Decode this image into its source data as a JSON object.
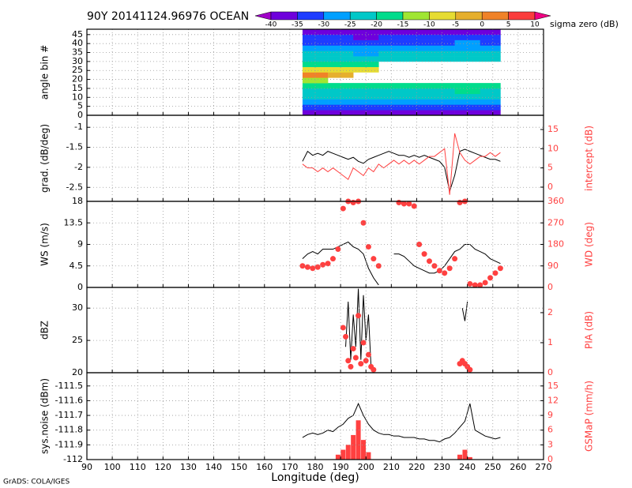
{
  "footer": "GrADS: COLA/IGES",
  "chart_data": [
    {
      "type": "colorbar",
      "title": "90Y 20141124.96976 OCEAN",
      "label": "sigma zero (dB)",
      "bounds": [
        -40,
        -35,
        -30,
        -25,
        -20,
        -15,
        -10,
        -5,
        0,
        5,
        10
      ],
      "colors": [
        "#a000c8",
        "#6e00dc",
        "#1e3cff",
        "#00a0ff",
        "#00c8c8",
        "#00dc8c",
        "#a0e632",
        "#e6dc32",
        "#e6af2d",
        "#f08228",
        "#fa3c3c",
        "#f00082"
      ]
    },
    {
      "type": "heatmap",
      "ylabel": "angle bin #",
      "xlim": [
        90,
        270
      ],
      "xticks": [
        90,
        100,
        110,
        120,
        130,
        140,
        150,
        160,
        170,
        180,
        190,
        200,
        210,
        220,
        230,
        240,
        250,
        260,
        270
      ],
      "ylim": [
        0,
        48
      ],
      "yticks": [
        0,
        5,
        10,
        15,
        20,
        25,
        30,
        35,
        40,
        45
      ],
      "grid": true,
      "x_edges": [
        175,
        185,
        195,
        205,
        215,
        225,
        235,
        245,
        253
      ],
      "y_edges": [
        0,
        3,
        6,
        9,
        12,
        15,
        18,
        21,
        24,
        27,
        30,
        33,
        36,
        39,
        42,
        45,
        48
      ],
      "values": [
        [
          -38,
          -38,
          -38,
          -38,
          -38,
          -38,
          -37,
          -38
        ],
        [
          -33,
          -33,
          -34,
          -33,
          -33,
          -33,
          -32,
          -33
        ],
        [
          -28,
          -28,
          -29,
          -28,
          -28,
          -28,
          -27,
          -28
        ],
        [
          -24,
          -24,
          -25,
          -24,
          -24,
          -24,
          -23,
          -24
        ],
        [
          -21,
          -21,
          -22,
          -21,
          -21,
          -21,
          -20,
          -21
        ],
        [
          -19,
          -19,
          -20,
          -19,
          -19,
          -19,
          -18,
          -19
        ],
        [
          -12,
          null,
          null,
          null,
          null,
          null,
          null,
          null
        ],
        [
          2,
          -5,
          null,
          null,
          null,
          null,
          null,
          null
        ],
        [
          -6,
          -8,
          -8,
          null,
          null,
          null,
          null,
          null
        ],
        [
          -20,
          -18,
          -18,
          null,
          null,
          null,
          null,
          null
        ],
        [
          -22,
          -22,
          -23,
          -22,
          -22,
          -22,
          -21,
          -22
        ],
        [
          -25,
          -25,
          -26,
          -25,
          -25,
          -25,
          -24,
          -25
        ],
        [
          -28,
          -28,
          -29,
          -28,
          -28,
          -28,
          -27,
          -28
        ],
        [
          -31,
          -31,
          -32,
          -31,
          -31,
          -31,
          -30,
          -31
        ],
        [
          -35,
          -35,
          -36,
          -35,
          -35,
          -35,
          -34,
          -35
        ],
        [
          -38,
          -38,
          -39,
          -38,
          -38,
          -38,
          -37,
          -38
        ]
      ]
    },
    {
      "type": "line",
      "ylabel": "grad. (dB/deg)",
      "y2label": "intercept (dB)",
      "xlim": [
        90,
        270
      ],
      "xticks": [
        90,
        100,
        110,
        120,
        130,
        140,
        150,
        160,
        170,
        180,
        190,
        200,
        210,
        220,
        230,
        240,
        250,
        260,
        270
      ],
      "ylim": [
        -2.85,
        -0.7
      ],
      "yticks": [
        -2.5,
        -2,
        -1.5,
        -1
      ],
      "y2lim": [
        -3.7,
        18.7
      ],
      "y2ticks": [
        0,
        5,
        10,
        15
      ],
      "grid": true,
      "x": [
        175,
        177,
        179,
        181,
        183,
        185,
        187,
        189,
        191,
        193,
        195,
        197,
        199,
        201,
        203,
        205,
        207,
        209,
        211,
        213,
        215,
        217,
        219,
        221,
        223,
        225,
        227,
        229,
        231,
        233,
        235,
        237,
        239,
        241,
        243,
        245,
        247,
        249,
        251,
        253
      ],
      "series": [
        {
          "kind": "line",
          "color": "#000000",
          "values": [
            -1.85,
            -1.6,
            -1.7,
            -1.65,
            -1.7,
            -1.6,
            -1.65,
            -1.7,
            -1.75,
            -1.8,
            -1.75,
            -1.85,
            -1.9,
            -1.8,
            -1.75,
            -1.7,
            -1.65,
            -1.6,
            -1.65,
            -1.7,
            -1.7,
            -1.75,
            -1.7,
            -1.75,
            -1.7,
            -1.75,
            -1.8,
            -1.85,
            -2.0,
            -2.6,
            -2.2,
            -1.6,
            -1.55,
            -1.6,
            -1.65,
            -1.7,
            -1.75,
            -1.8,
            -1.8,
            -1.85
          ]
        },
        {
          "kind": "line",
          "color": "#ff4040",
          "axis": "y2",
          "values": [
            6,
            5,
            5,
            4,
            5,
            4,
            5,
            4,
            3,
            2,
            5,
            4,
            3,
            5,
            4,
            6,
            5,
            6,
            7,
            6,
            7,
            6,
            7,
            6,
            7,
            8,
            8,
            9,
            10,
            -2,
            14,
            9,
            7,
            6,
            7,
            8,
            8,
            9,
            8,
            9
          ]
        }
      ]
    },
    {
      "type": "line",
      "ylabel": "WS (m/s)",
      "y2label": "WD (deg)",
      "xlim": [
        90,
        270
      ],
      "xticks": [
        90,
        100,
        110,
        120,
        130,
        140,
        150,
        160,
        170,
        180,
        190,
        200,
        210,
        220,
        230,
        240,
        250,
        260,
        270
      ],
      "ylim": [
        0,
        18
      ],
      "yticks": [
        0,
        4.5,
        9,
        13.5,
        18
      ],
      "y2lim": [
        0,
        360
      ],
      "y2ticks": [
        0,
        90,
        180,
        270,
        360
      ],
      "grid": true,
      "x": [
        175,
        177,
        179,
        181,
        183,
        185,
        187,
        189,
        191,
        193,
        195,
        197,
        199,
        201,
        203,
        205,
        207,
        209,
        211,
        213,
        215,
        217,
        219,
        221,
        223,
        225,
        227,
        229,
        231,
        233,
        235,
        237,
        239,
        241,
        243,
        245,
        247,
        249,
        251,
        253
      ],
      "series": [
        {
          "kind": "line",
          "color": "#000000",
          "values": [
            6,
            7,
            7.5,
            7,
            8,
            8,
            8,
            8.5,
            9,
            9.5,
            8.5,
            8,
            7,
            4,
            2,
            0.5,
            null,
            null,
            7,
            7,
            6.5,
            5.5,
            4.5,
            4,
            3.5,
            3,
            3,
            3.5,
            4.5,
            6,
            7.5,
            8,
            9,
            9,
            8,
            7.5,
            7,
            6,
            5.5,
            5
          ]
        },
        {
          "kind": "points",
          "color": "#ff4040",
          "axis": "y2",
          "values": [
            90,
            85,
            80,
            85,
            95,
            100,
            120,
            160,
            330,
            360,
            355,
            360,
            270,
            170,
            120,
            90,
            null,
            null,
            null,
            355,
            350,
            350,
            340,
            180,
            140,
            110,
            90,
            70,
            60,
            80,
            120,
            355,
            360,
            15,
            10,
            10,
            20,
            40,
            60,
            80
          ]
        }
      ]
    },
    {
      "type": "line",
      "ylabel": "dBZ",
      "y2label": "PIA (dB)",
      "xlim": [
        90,
        270
      ],
      "xticks": [
        90,
        100,
        110,
        120,
        130,
        140,
        150,
        160,
        170,
        180,
        190,
        200,
        210,
        220,
        230,
        240,
        250,
        260,
        270
      ],
      "ylim": [
        20,
        33.2
      ],
      "yticks": [
        20,
        25,
        30
      ],
      "y2lim": [
        0,
        2.84
      ],
      "y2ticks": [
        0,
        1,
        2
      ],
      "grid": true,
      "x": [
        191,
        192,
        193,
        194,
        195,
        196,
        197,
        198,
        199,
        200,
        201,
        202,
        203,
        237,
        238,
        239,
        240,
        241
      ],
      "series": [
        {
          "kind": "line",
          "color": "#000000",
          "values": [
            null,
            24,
            31,
            22,
            29,
            24,
            33,
            22,
            32,
            25,
            29,
            21,
            null,
            null,
            30,
            28,
            31,
            null
          ]
        },
        {
          "kind": "points",
          "color": "#ff4040",
          "axis": "y2",
          "values": [
            1.5,
            1.2,
            0.4,
            0.2,
            0.8,
            0.5,
            1.9,
            0.3,
            1.0,
            0.4,
            0.6,
            0.2,
            0.1,
            0.3,
            0.4,
            0.3,
            0.2,
            0.1
          ]
        }
      ]
    },
    {
      "type": "line",
      "ylabel": "sys.noise (dBm)",
      "y2label": "GSMaP (mm/h)",
      "xlabel": "Longitude (deg)",
      "xlim": [
        90,
        270
      ],
      "xticks": [
        90,
        100,
        110,
        120,
        130,
        140,
        150,
        160,
        170,
        180,
        190,
        200,
        210,
        220,
        230,
        240,
        250,
        260,
        270
      ],
      "ylim": [
        -112,
        -111.41
      ],
      "yticks": [
        -112,
        -111.9,
        -111.8,
        -111.7,
        -111.6,
        -111.5
      ],
      "y2lim": [
        0,
        17.7
      ],
      "y2ticks": [
        0,
        3,
        6,
        9,
        12,
        15
      ],
      "grid": true,
      "x": [
        175,
        177,
        179,
        181,
        183,
        185,
        187,
        189,
        191,
        193,
        195,
        197,
        199,
        201,
        203,
        205,
        207,
        209,
        211,
        213,
        215,
        217,
        219,
        221,
        223,
        225,
        227,
        229,
        231,
        233,
        235,
        237,
        239,
        241,
        243,
        245,
        247,
        249,
        251,
        253
      ],
      "series": [
        {
          "kind": "line",
          "color": "#000000",
          "values": [
            -111.85,
            -111.83,
            -111.82,
            -111.83,
            -111.82,
            -111.8,
            -111.81,
            -111.78,
            -111.76,
            -111.72,
            -111.7,
            -111.62,
            -111.7,
            -111.76,
            -111.8,
            -111.82,
            -111.83,
            -111.83,
            -111.84,
            -111.84,
            -111.85,
            -111.85,
            -111.85,
            -111.86,
            -111.86,
            -111.87,
            -111.87,
            -111.88,
            -111.86,
            -111.85,
            -111.82,
            -111.78,
            -111.74,
            -111.62,
            -111.8,
            -111.82,
            -111.84,
            -111.85,
            -111.86,
            -111.85
          ]
        },
        {
          "kind": "bars",
          "color": "#ff4040",
          "axis": "y2",
          "values": [
            0,
            0,
            0,
            0,
            0,
            0,
            0,
            1,
            2,
            3,
            5,
            8,
            4,
            1.5,
            0,
            0,
            0,
            0,
            0,
            0,
            0,
            0,
            0,
            0,
            0,
            0,
            0,
            0,
            0,
            0,
            0,
            1,
            2,
            0.5,
            0,
            0,
            0,
            0,
            0,
            0
          ]
        }
      ]
    }
  ]
}
